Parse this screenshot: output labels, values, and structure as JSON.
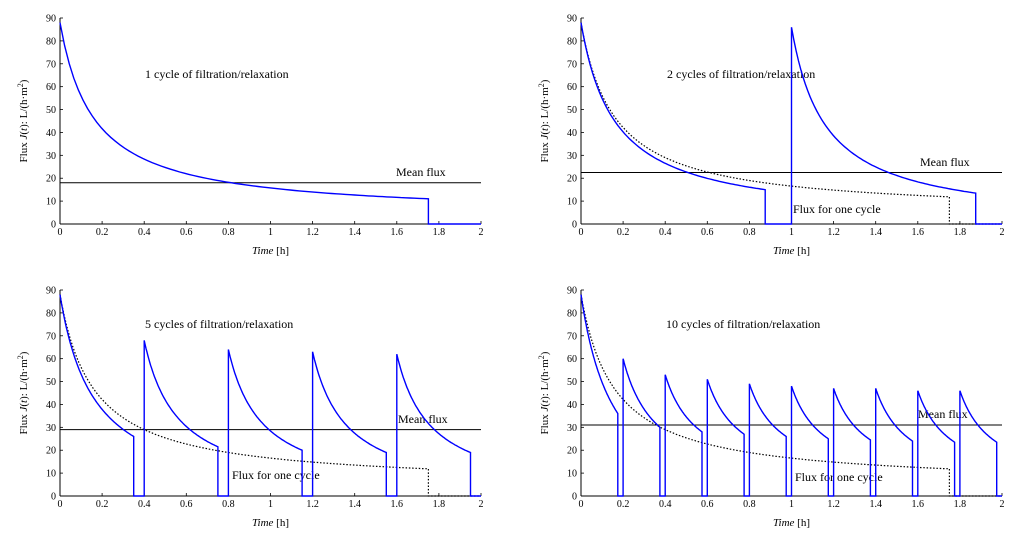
{
  "colors": {
    "series_cycles": "#0000ff",
    "series_one_cycle": "#000000",
    "mean_line": "#000000"
  },
  "chart_data": [
    {
      "type": "line",
      "title": "",
      "annotation": "1 cycle of filtration/relaxation",
      "mean_label": "Mean flux",
      "one_cycle_label": "",
      "xlabel": {
        "italic": "Time",
        "rest": " [h]"
      },
      "ylabel": {
        "prefix": "Flux ",
        "var": "J",
        "mid": "(",
        "var2": "t",
        "suffix": "): L/(h·m",
        "sup": "2",
        "end": ")"
      },
      "xlim": [
        0,
        2
      ],
      "ylim": [
        0,
        90
      ],
      "xticks": [
        "0",
        "0.2",
        "0.4",
        "0.6",
        "0.8",
        "1",
        "1.2",
        "1.4",
        "1.6",
        "1.8",
        "2"
      ],
      "yticks": [
        "0",
        "10",
        "20",
        "30",
        "40",
        "50",
        "60",
        "70",
        "80",
        "90"
      ],
      "cycles": 1,
      "mean_flux": 18,
      "peaks": [
        88
      ],
      "cycle_ends": [
        11
      ],
      "show_one_cycle": false
    },
    {
      "type": "line",
      "title": "",
      "annotation": "2 cycles of filtration/relaxation",
      "mean_label": "Mean flux",
      "one_cycle_label": "Flux for one cycle",
      "xlabel": {
        "italic": "Time",
        "rest": " [h]"
      },
      "ylabel": {
        "prefix": "Flux ",
        "var": "J",
        "mid": "(",
        "var2": "t",
        "suffix": "): L/(h·m",
        "sup": "2",
        "end": ")"
      },
      "xlim": [
        0,
        2
      ],
      "ylim": [
        0,
        90
      ],
      "xticks": [
        "0",
        "0.2",
        "0.4",
        "0.6",
        "0.8",
        "1",
        "1.2",
        "1.4",
        "1.6",
        "1.8",
        "2"
      ],
      "yticks": [
        "0",
        "10",
        "20",
        "30",
        "40",
        "50",
        "60",
        "70",
        "80",
        "90"
      ],
      "cycles": 2,
      "mean_flux": 22.5,
      "peaks": [
        88,
        86
      ],
      "cycle_ends": [
        15,
        13.5
      ],
      "show_one_cycle": true
    },
    {
      "type": "line",
      "title": "",
      "annotation": "5 cycles of filtration/relaxation",
      "mean_label": "Mean flux",
      "one_cycle_label": "Flux for one cycle",
      "xlabel": {
        "italic": "Time",
        "rest": " [h]"
      },
      "ylabel": {
        "prefix": "Flux ",
        "var": "J",
        "mid": "(",
        "var2": "t",
        "suffix": "): L/(h·m",
        "sup": "2",
        "end": ")"
      },
      "xlim": [
        0,
        2
      ],
      "ylim": [
        0,
        90
      ],
      "xticks": [
        "0",
        "0.2",
        "0.4",
        "0.6",
        "0.8",
        "1",
        "1.2",
        "1.4",
        "1.6",
        "1.8",
        "2"
      ],
      "yticks": [
        "0",
        "10",
        "20",
        "30",
        "40",
        "50",
        "60",
        "70",
        "80",
        "90"
      ],
      "cycles": 5,
      "mean_flux": 29,
      "peaks": [
        88,
        68,
        64,
        63,
        62
      ],
      "cycle_ends": [
        26,
        21.5,
        20,
        19,
        19
      ],
      "show_one_cycle": true
    },
    {
      "type": "line",
      "title": "",
      "annotation": "10 cycles of filtration/relaxation",
      "mean_label": "Mean flux",
      "one_cycle_label": "Flux for one cycle",
      "xlabel": {
        "italic": "Time",
        "rest": " [h]"
      },
      "ylabel": {
        "prefix": "Flux ",
        "var": "J",
        "mid": "(",
        "var2": "t",
        "suffix": "): L/(h·m",
        "sup": "2",
        "end": ")"
      },
      "xlim": [
        0,
        2
      ],
      "ylim": [
        0,
        90
      ],
      "xticks": [
        "0",
        "0.2",
        "0.4",
        "0.6",
        "0.8",
        "1",
        "1.2",
        "1.4",
        "1.6",
        "1.8",
        "2"
      ],
      "yticks": [
        "0",
        "10",
        "20",
        "30",
        "40",
        "50",
        "60",
        "70",
        "80",
        "90"
      ],
      "cycles": 10,
      "mean_flux": 31,
      "peaks": [
        88,
        60,
        53,
        51,
        49,
        48,
        47,
        47,
        46,
        46
      ],
      "cycle_ends": [
        36,
        30,
        28,
        27,
        26,
        25,
        24.5,
        24,
        23.5,
        23.5
      ],
      "show_one_cycle": true
    }
  ]
}
